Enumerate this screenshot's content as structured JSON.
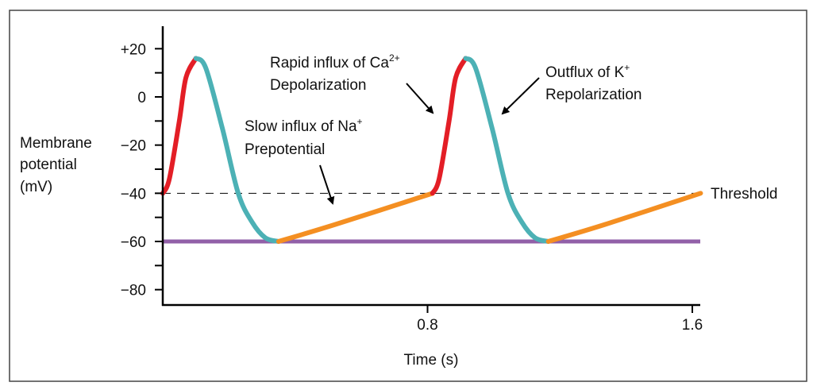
{
  "chart_data": {
    "type": "line",
    "xlabel": "Time (s)",
    "ylabel": [
      "Membrane",
      "potential",
      "(mV)"
    ],
    "xlim": [
      0,
      1.6
    ],
    "ylim": [
      -92,
      28
    ],
    "x_ticks": [
      {
        "value": 0.8,
        "label": "0.8"
      },
      {
        "value": 1.6,
        "label": "1.6"
      }
    ],
    "y_ticks": [
      {
        "value": 20,
        "label": "+20"
      },
      {
        "value": 0,
        "label": "0"
      },
      {
        "value": -20,
        "label": "−20"
      },
      {
        "value": -40,
        "label": "−40"
      },
      {
        "value": -60,
        "label": "−60"
      },
      {
        "value": -80,
        "label": "−80"
      }
    ],
    "y_minor_ticks": [
      10,
      -10,
      -30,
      -50,
      -70
    ],
    "threshold": {
      "value": -40,
      "label": "Threshold",
      "style": "dashed"
    },
    "resting_line": {
      "value": -60,
      "color": "#9260a8"
    },
    "colors": {
      "depolarization": "#e31e26",
      "repolarization": "#4cb1b5",
      "prepotential": "#f48f22"
    },
    "segments": [
      {
        "phase": "depolarization",
        "points": [
          [
            0,
            -40
          ],
          [
            0.02,
            -34
          ],
          [
            0.05,
            -10
          ],
          [
            0.07,
            8
          ],
          [
            0.1,
            16
          ]
        ]
      },
      {
        "phase": "repolarization",
        "points": [
          [
            0.1,
            16
          ],
          [
            0.13,
            12
          ],
          [
            0.18,
            -13
          ],
          [
            0.228,
            -40
          ],
          [
            0.27,
            -52
          ],
          [
            0.31,
            -58.5
          ],
          [
            0.35,
            -60
          ]
        ]
      },
      {
        "phase": "prepotential",
        "points": [
          [
            0.35,
            -60
          ],
          [
            0.52,
            -53
          ],
          [
            0.815,
            -40
          ]
        ]
      },
      {
        "phase": "depolarization",
        "points": [
          [
            0.815,
            -40
          ],
          [
            0.835,
            -34
          ],
          [
            0.865,
            -10
          ],
          [
            0.885,
            8
          ],
          [
            0.915,
            16
          ]
        ]
      },
      {
        "phase": "repolarization",
        "points": [
          [
            0.915,
            16
          ],
          [
            0.945,
            12
          ],
          [
            0.995,
            -13
          ],
          [
            1.043,
            -40
          ],
          [
            1.085,
            -52
          ],
          [
            1.125,
            -58.5
          ],
          [
            1.165,
            -60
          ]
        ]
      },
      {
        "phase": "prepotential",
        "points": [
          [
            1.165,
            -60
          ],
          [
            1.335,
            -53
          ],
          [
            1.625,
            -40
          ]
        ]
      }
    ],
    "annotations": [
      {
        "lines": [
          "Slow influx of Na",
          "Prepotential"
        ],
        "sup": "+"
      },
      {
        "lines": [
          "Rapid influx of Ca",
          "Depolarization"
        ],
        "sup": "2+"
      },
      {
        "lines": [
          "Outflux of K",
          "Repolarization"
        ],
        "sup": "+"
      }
    ]
  }
}
